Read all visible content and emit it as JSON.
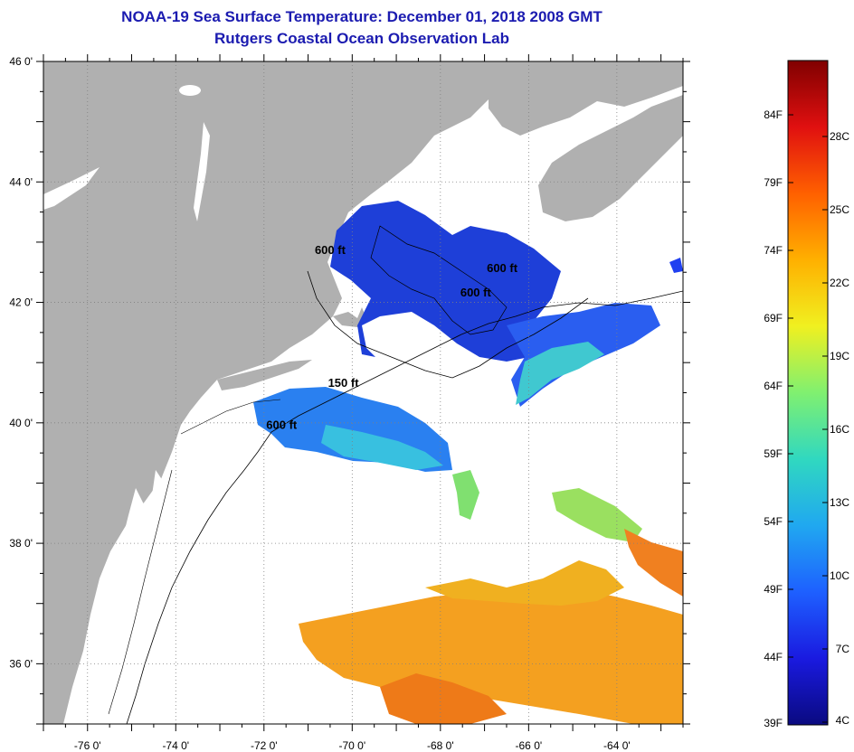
{
  "title": {
    "line1": "NOAA-19 Sea Surface Temperature:  December 01, 2018 2008 GMT",
    "line2": "Rutgers Coastal Ocean Observation Lab"
  },
  "map": {
    "lon_range": [
      -77,
      -62.5
    ],
    "lat_range": [
      35,
      46
    ],
    "lon_ticks": [
      -76,
      -74,
      -72,
      -70,
      -68,
      -66,
      -64
    ],
    "lat_ticks": [
      46,
      44,
      42,
      40,
      38,
      36
    ],
    "lon_labels": [
      "-76 0'",
      "-74 0'",
      "-72 0'",
      "-70 0'",
      "-68 0'",
      "-66 0'",
      "-64 0'"
    ],
    "lat_labels": [
      "46 0'",
      "44 0'",
      "42 0'",
      "40 0'",
      "38 0'",
      "36 0'"
    ],
    "contour_labels": [
      {
        "text": "600 ft",
        "lon": -70.5,
        "lat": 42.8
      },
      {
        "text": "600 ft",
        "lon": -66.6,
        "lat": 42.5
      },
      {
        "text": "600 ft",
        "lon": -67.2,
        "lat": 42.1
      },
      {
        "text": "150 ft",
        "lon": -70.2,
        "lat": 40.6
      },
      {
        "text": "600 ft",
        "lon": -71.6,
        "lat": 39.9
      }
    ],
    "colors": {
      "land": "#b0b0b0",
      "no_data": "#ffffff",
      "grid": "#808080"
    }
  },
  "colorbar": {
    "range_f": [
      39,
      88
    ],
    "f_labels": [
      "84F",
      "79F",
      "74F",
      "69F",
      "64F",
      "59F",
      "54F",
      "49F",
      "44F",
      "39F"
    ],
    "c_labels": [
      "28C",
      "25C",
      "22C",
      "19C",
      "16C",
      "13C",
      "10C",
      "7C",
      "4C"
    ],
    "f_values": [
      84,
      79,
      74,
      69,
      64,
      59,
      54,
      49,
      44,
      39
    ],
    "c_values": [
      28,
      25,
      22,
      19,
      16,
      13,
      10,
      7,
      4
    ],
    "stops": [
      "#0a0a80",
      "#1a1ae0",
      "#1e60ff",
      "#20a8f0",
      "#30d8c0",
      "#80f070",
      "#f0f020",
      "#ffb000",
      "#ff6000",
      "#e01010",
      "#800000"
    ]
  }
}
